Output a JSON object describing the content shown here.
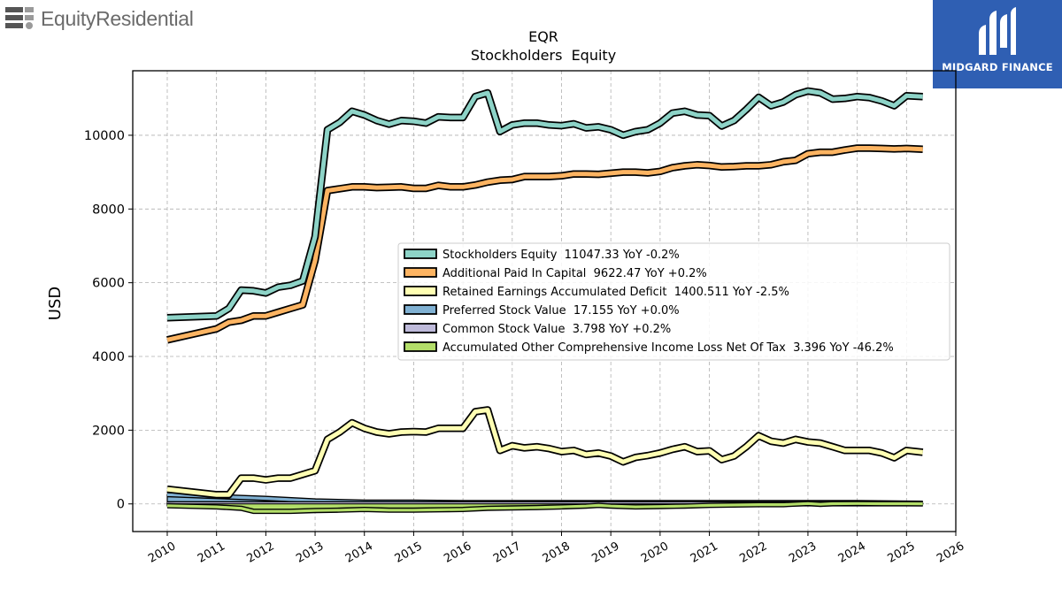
{
  "header": {
    "brand_left": "EquityResidential",
    "brand_right": "MIDGARD FINANCE"
  },
  "icons": {
    "left_logo": "equity-residential-logo-icon",
    "right_logo": "midgard-finance-logo-icon"
  },
  "colors": {
    "stockholders_equity": "#8dd3c7",
    "additional_paid_in_capital": "#fdb462",
    "retained_earnings": "#ffffb3",
    "preferred_stock": "#80b1d3",
    "common_stock": "#bebada",
    "aoci": "#b3de69",
    "brand_blue": "#2f5fb3"
  },
  "chart_data": {
    "type": "line",
    "title": "EQR",
    "subtitle": "Stockholders  Equity",
    "ylabel": "USD",
    "xlabel": "",
    "xlim": [
      2009.3,
      2026.0
    ],
    "ylim": [
      -750,
      11750
    ],
    "x_ticks": [
      "2010",
      "2011",
      "2012",
      "2013",
      "2014",
      "2015",
      "2016",
      "2017",
      "2018",
      "2019",
      "2020",
      "2021",
      "2022",
      "2023",
      "2024",
      "2025",
      "2026"
    ],
    "y_ticks": [
      "0",
      "2000",
      "4000",
      "6000",
      "8000",
      "10000"
    ],
    "y_tick_values": [
      0,
      2000,
      4000,
      6000,
      8000,
      10000
    ],
    "grid": true,
    "legend_position": "center-right",
    "series": [
      {
        "key": "stockholders_equity",
        "name": "Stockholders Equity",
        "legend": "Stockholders Equity  11047.33 YoY -0.2%",
        "x": [
          2010.0,
          2011.0,
          2011.25,
          2011.5,
          2011.75,
          2012.0,
          2012.25,
          2012.5,
          2012.75,
          2013.0,
          2013.25,
          2013.5,
          2013.75,
          2014.0,
          2014.25,
          2014.5,
          2014.75,
          2015.0,
          2015.25,
          2015.5,
          2015.75,
          2016.0,
          2016.25,
          2016.5,
          2016.75,
          2017.0,
          2017.25,
          2017.5,
          2017.75,
          2018.0,
          2018.25,
          2018.5,
          2018.75,
          2019.0,
          2019.25,
          2019.5,
          2019.75,
          2020.0,
          2020.25,
          2020.5,
          2020.75,
          2021.0,
          2021.25,
          2021.5,
          2021.75,
          2022.0,
          2022.25,
          2022.5,
          2022.75,
          2023.0,
          2023.25,
          2023.5,
          2023.75,
          2024.0,
          2024.25,
          2024.5,
          2024.75,
          2025.0,
          2025.33
        ],
        "y": [
          5050,
          5100,
          5300,
          5800,
          5780,
          5720,
          5880,
          5930,
          6050,
          7250,
          10150,
          10350,
          10650,
          10550,
          10400,
          10300,
          10400,
          10380,
          10330,
          10500,
          10480,
          10480,
          11050,
          11150,
          10100,
          10280,
          10330,
          10330,
          10280,
          10260,
          10310,
          10200,
          10230,
          10150,
          10000,
          10100,
          10150,
          10330,
          10600,
          10650,
          10550,
          10530,
          10250,
          10400,
          10700,
          11030,
          10800,
          10900,
          11100,
          11200,
          11150,
          10980,
          11000,
          11050,
          11020,
          10930,
          10800,
          11070,
          11047.33
        ]
      },
      {
        "key": "additional_paid_in_capital",
        "name": "Additional Paid In Capital",
        "legend": "Additional Paid In Capital  9622.47 YoY +0.2%",
        "x": [
          2010.0,
          2011.0,
          2011.25,
          2011.5,
          2011.75,
          2012.0,
          2012.25,
          2012.5,
          2012.75,
          2013.0,
          2013.25,
          2013.5,
          2013.75,
          2014.0,
          2014.25,
          2014.5,
          2014.75,
          2015.0,
          2015.25,
          2015.5,
          2015.75,
          2016.0,
          2016.25,
          2016.5,
          2016.75,
          2017.0,
          2017.25,
          2017.5,
          2017.75,
          2018.0,
          2018.25,
          2018.5,
          2018.75,
          2019.0,
          2019.25,
          2019.5,
          2019.75,
          2020.0,
          2020.25,
          2020.5,
          2020.75,
          2021.0,
          2021.25,
          2021.5,
          2021.75,
          2022.0,
          2022.25,
          2022.5,
          2022.75,
          2023.0,
          2023.25,
          2023.5,
          2023.75,
          2024.0,
          2024.25,
          2024.5,
          2024.75,
          2025.0,
          2025.33
        ],
        "y": [
          4450,
          4750,
          4930,
          4980,
          5100,
          5100,
          5200,
          5300,
          5400,
          6600,
          8500,
          8550,
          8600,
          8600,
          8580,
          8590,
          8600,
          8560,
          8560,
          8640,
          8600,
          8600,
          8650,
          8730,
          8780,
          8800,
          8880,
          8880,
          8880,
          8900,
          8950,
          8950,
          8940,
          8970,
          9000,
          9000,
          8980,
          9020,
          9120,
          9170,
          9200,
          9180,
          9140,
          9150,
          9170,
          9170,
          9200,
          9280,
          9320,
          9500,
          9540,
          9540,
          9600,
          9650,
          9650,
          9640,
          9630,
          9640,
          9622.47
        ]
      },
      {
        "key": "retained_earnings",
        "name": "Retained Earnings Accumulated Deficit",
        "legend": "Retained Earnings Accumulated Deficit  1400.511 YoY -2.5%",
        "x": [
          2010.0,
          2011.0,
          2011.25,
          2011.5,
          2011.75,
          2012.0,
          2012.25,
          2012.5,
          2012.75,
          2013.0,
          2013.25,
          2013.5,
          2013.75,
          2014.0,
          2014.25,
          2014.5,
          2014.75,
          2015.0,
          2015.25,
          2015.5,
          2015.75,
          2016.0,
          2016.25,
          2016.5,
          2016.75,
          2017.0,
          2017.25,
          2017.5,
          2017.75,
          2018.0,
          2018.25,
          2018.5,
          2018.75,
          2019.0,
          2019.25,
          2019.5,
          2019.75,
          2020.0,
          2020.25,
          2020.5,
          2020.75,
          2021.0,
          2021.25,
          2021.5,
          2021.75,
          2022.0,
          2022.25,
          2022.5,
          2022.75,
          2023.0,
          2023.25,
          2023.5,
          2023.75,
          2024.0,
          2024.25,
          2024.5,
          2024.75,
          2025.0,
          2025.33
        ],
        "y": [
          400,
          250,
          250,
          700,
          700,
          650,
          700,
          700,
          800,
          900,
          1750,
          1950,
          2200,
          2050,
          1950,
          1900,
          1950,
          1960,
          1950,
          2050,
          2050,
          2050,
          2500,
          2550,
          1450,
          1580,
          1520,
          1550,
          1500,
          1420,
          1450,
          1340,
          1380,
          1300,
          1140,
          1260,
          1310,
          1380,
          1480,
          1550,
          1420,
          1440,
          1200,
          1300,
          1550,
          1850,
          1700,
          1650,
          1750,
          1680,
          1650,
          1550,
          1450,
          1450,
          1450,
          1380,
          1250,
          1450,
          1400.511
        ]
      },
      {
        "key": "preferred_stock",
        "name": "Preferred Stock Value",
        "legend": "Preferred Stock Value  17.155 YoY +0.0%",
        "x": [
          2010.0,
          2011.0,
          2012.0,
          2013.0,
          2014.0,
          2015.0,
          2016.0,
          2017.0,
          2018.0,
          2019.0,
          2020.0,
          2021.0,
          2022.0,
          2023.0,
          2024.0,
          2025.33
        ],
        "y": [
          250,
          200,
          150,
          80,
          50,
          50,
          37,
          37,
          37,
          37,
          37,
          37,
          37,
          37,
          37,
          17.155
        ]
      },
      {
        "key": "common_stock",
        "name": "Common Stock Value",
        "legend": "Common Stock Value  3.798 YoY +0.2%",
        "x": [
          2010.0,
          2011.0,
          2012.0,
          2013.0,
          2014.0,
          2015.0,
          2016.0,
          2017.0,
          2018.0,
          2019.0,
          2020.0,
          2021.0,
          2022.0,
          2023.0,
          2024.0,
          2025.33
        ],
        "y": [
          3,
          3,
          3,
          3.5,
          3.6,
          3.6,
          3.6,
          3.7,
          3.7,
          3.7,
          3.7,
          3.7,
          3.8,
          3.8,
          3.8,
          3.798
        ]
      },
      {
        "key": "aoci",
        "name": "Accumulated Other Comprehensive Income Loss Net Of Tax",
        "legend": "Accumulated Other Comprehensive Income Loss Net Of Tax  3.396 YoY -46.2%",
        "x": [
          2010.0,
          2011.0,
          2011.5,
          2011.75,
          2012.0,
          2012.5,
          2013.0,
          2013.5,
          2014.0,
          2014.5,
          2015.0,
          2015.5,
          2016.0,
          2016.5,
          2017.0,
          2017.5,
          2018.0,
          2018.5,
          2018.75,
          2019.0,
          2019.5,
          2020.0,
          2020.5,
          2021.0,
          2022.0,
          2022.5,
          2023.0,
          2023.25,
          2023.5,
          2024.0,
          2024.5,
          2025.0,
          2025.33
        ],
        "y": [
          -50,
          -80,
          -120,
          -200,
          -200,
          -200,
          -180,
          -170,
          -150,
          -170,
          -170,
          -160,
          -150,
          -120,
          -110,
          -100,
          -80,
          -60,
          -40,
          -60,
          -80,
          -70,
          -60,
          -40,
          -20,
          -20,
          10,
          -10,
          5,
          10,
          5,
          5,
          3.396
        ]
      }
    ]
  }
}
